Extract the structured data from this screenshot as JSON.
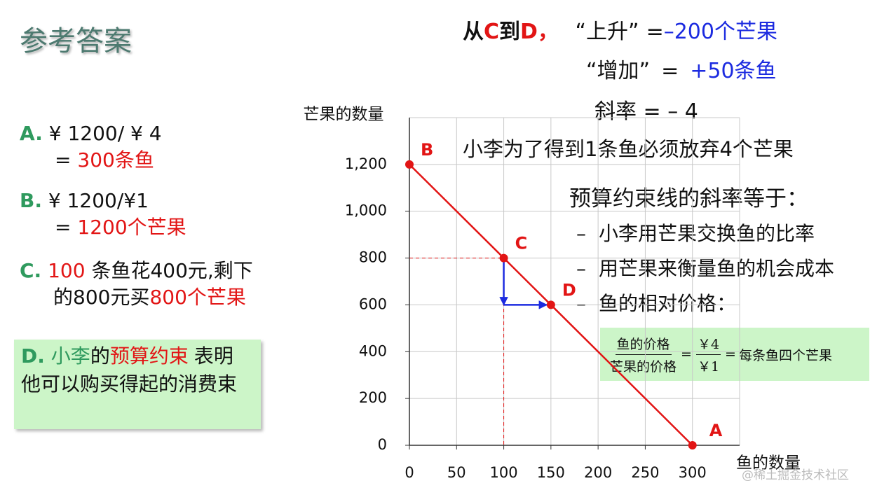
{
  "title": "参考答案",
  "answers": {
    "a": {
      "label": "A.",
      "expr": "¥ 1200/ ¥ 4",
      "eq": "=",
      "result": "300条鱼"
    },
    "b": {
      "label": "B.",
      "expr": "¥ 1200/¥1",
      "eq": "=",
      "result": "1200个芒果"
    },
    "c": {
      "label": "C.",
      "num": "100",
      "text1": " 条鱼花400元,剩下",
      "text2": "的800元买",
      "result": "800个芒果"
    },
    "d": {
      "label": "D.",
      "who": "小李",
      "of": "的",
      "term": "预算约束",
      "text": "表明他可以购买得起的消费束"
    }
  },
  "slope": {
    "from": "从",
    "c": "C",
    "to": "到",
    "d": "D",
    "comma": "，",
    "rise_label": "“上升”",
    "eq": "=",
    "rise": "–200个芒果",
    "run_label": "“增加”",
    "run": "+50条鱼",
    "result": "斜率 = – 4"
  },
  "note": "小李为了得到1条鱼必须放弃4个芒果",
  "slope_meaning": {
    "heading": "预算约束线的斜率等于：",
    "marker": "–",
    "items": [
      "小李用芒果交换鱼的比率",
      "用芒果来衡量鱼的机会成本",
      "鱼的相对价格："
    ]
  },
  "formula": {
    "num1": "鱼的价格",
    "den1": "芒果的价格",
    "eq": "=",
    "num2": "￥4",
    "den2": "￥1",
    "result": "每条鱼四个芒果"
  },
  "watermark": "@稀土掘金技术社区",
  "chart_data": {
    "type": "line",
    "x_label": "鱼的数量",
    "y_label": "芒果的数量",
    "x": [
      0,
      100,
      150,
      300
    ],
    "series": [
      {
        "color": "#e21515",
        "values": [
          1200,
          800,
          600,
          0
        ],
        "point_labels": [
          "B",
          "C",
          "D",
          "A"
        ]
      }
    ],
    "xlim": [
      0,
      350
    ],
    "ylim": [
      0,
      1400
    ],
    "xticks": [
      0,
      50,
      100,
      150,
      200,
      250,
      300
    ],
    "yticks": [
      0,
      200,
      400,
      600,
      800,
      {
        "value": 1000,
        "label": "1,000"
      },
      {
        "value": 1200,
        "label": "1,200"
      }
    ],
    "grid": true
  }
}
